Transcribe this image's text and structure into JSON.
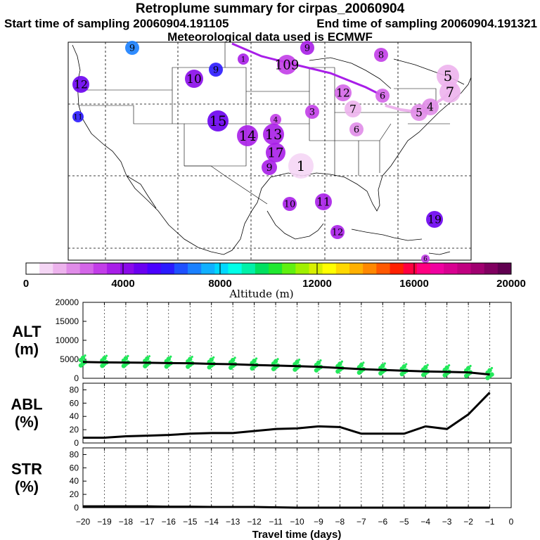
{
  "title": "Retroplume summary for cirpas_20060904",
  "start_time": "Start time of sampling 20060904.191105",
  "end_time": "End time of sampling 20060904.191321",
  "met_data": "Meteorological data used is ECMWF",
  "colorbar": {
    "label": "Altitude (m)",
    "ticks": [
      "0",
      "4000",
      "8000",
      "12000",
      "16000",
      "20000"
    ],
    "colors": [
      "#ffffff",
      "#f5d6f5",
      "#edb3ed",
      "#e08ce8",
      "#d466e8",
      "#c23de8",
      "#a81ee8",
      "#8a0aea",
      "#6a00f0",
      "#4a00ff",
      "#2a1aff",
      "#1e50ff",
      "#1a80ff",
      "#10b0ff",
      "#00d8ff",
      "#00ffe8",
      "#00f0a8",
      "#00e060",
      "#20e830",
      "#60f010",
      "#a0f000",
      "#d8f000",
      "#ffff00",
      "#ffd800",
      "#ffb000",
      "#ff8800",
      "#ff5800",
      "#ff2000",
      "#ff0040",
      "#ff0080",
      "#f000a0",
      "#d80090",
      "#c00080",
      "#a00070",
      "#800060",
      "#600050"
    ]
  },
  "map": {
    "plume_labels": [
      {
        "t": "9",
        "c": "#1a80ff"
      },
      {
        "t": "9",
        "c": "#a81ee8"
      },
      {
        "t": "8",
        "c": "#c23de8"
      },
      {
        "t": "1",
        "c": "#a81ee8"
      },
      {
        "t": "10",
        "c": "#8a0aea"
      },
      {
        "t": "9",
        "c": "#2a1aff"
      },
      {
        "t": "12",
        "c": "#6a00f0"
      },
      {
        "t": "11",
        "c": "#2a1aff"
      },
      {
        "t": "15",
        "c": "#6a00f0"
      },
      {
        "t": "4",
        "c": "#c23de8"
      },
      {
        "t": "14",
        "c": "#a81ee8"
      },
      {
        "t": "13",
        "c": "#a81ee8"
      },
      {
        "t": "17",
        "c": "#a81ee8"
      },
      {
        "t": "9",
        "c": "#a81ee8"
      },
      {
        "t": "1",
        "c": "#f5d6f5"
      },
      {
        "t": "3",
        "c": "#c23de8"
      },
      {
        "t": "12",
        "c": "#d466e8"
      },
      {
        "t": "6",
        "c": "#d466e8"
      },
      {
        "t": "7",
        "c": "#edb3ed"
      },
      {
        "t": "5",
        "c": "#e08ce8"
      },
      {
        "t": "6",
        "c": "#e08ce8"
      },
      {
        "t": "4",
        "c": "#e08ce8"
      },
      {
        "t": "5",
        "c": "#edb3ed"
      },
      {
        "t": "7",
        "c": "#edb3ed"
      },
      {
        "t": "10",
        "c": "#a81ee8"
      },
      {
        "t": "11",
        "c": "#a81ee8"
      },
      {
        "t": "12",
        "c": "#a81ee8"
      },
      {
        "t": "19",
        "c": "#6a00f0"
      },
      {
        "t": "6",
        "c": "#c23de8"
      },
      {
        "t": "109",
        "c": "#c23de8"
      }
    ]
  },
  "chart_data": [
    {
      "type": "line",
      "panel": "ALT",
      "ylabel_top": "ALT",
      "ylabel_bottom": "(m)",
      "ylim": [
        0,
        20000
      ],
      "yticks": [
        "20000",
        "15000",
        "10000",
        "5000",
        "0"
      ],
      "x": [
        -20,
        -19,
        -18,
        -17,
        -16,
        -15,
        -14,
        -13,
        -12,
        -11,
        -10,
        -9,
        -8,
        -7,
        -6,
        -5,
        -4,
        -3,
        -2,
        -1
      ],
      "values": [
        4300,
        4200,
        4150,
        4100,
        4000,
        3950,
        3800,
        3700,
        3500,
        3350,
        3200,
        3000,
        2700,
        2400,
        2200,
        2000,
        1800,
        1700,
        1550,
        1000
      ],
      "scatter_color": "#22e85a"
    },
    {
      "type": "line",
      "panel": "ABL",
      "ylabel_top": "ABL",
      "ylabel_bottom": "(%)",
      "ylim": [
        0,
        90
      ],
      "yticks": [
        "80",
        "60",
        "40",
        "20",
        "0"
      ],
      "x": [
        -20,
        -19,
        -18,
        -17,
        -16,
        -15,
        -14,
        -13,
        -12,
        -11,
        -10,
        -9,
        -8,
        -7,
        -6,
        -5,
        -4,
        -3,
        -2,
        -1
      ],
      "values": [
        8,
        8,
        10,
        11,
        12,
        14,
        15,
        15,
        18,
        21,
        22,
        25,
        24,
        14,
        14,
        14,
        25,
        21,
        43,
        76
      ]
    },
    {
      "type": "line",
      "panel": "STR",
      "ylabel_top": "STR",
      "ylabel_bottom": "(%)",
      "ylim": [
        0,
        90
      ],
      "yticks": [
        "80",
        "60",
        "40",
        "20",
        "0"
      ],
      "x": [
        -20,
        -19,
        -18,
        -17,
        -16,
        -15,
        -14,
        -13,
        -12,
        -11,
        -10,
        -9,
        -8,
        -7,
        -6,
        -5,
        -4,
        -3,
        -2,
        -1
      ],
      "values": [
        2,
        2,
        2,
        2,
        1.5,
        1.5,
        1,
        1,
        1,
        0.5,
        0,
        0,
        0,
        0,
        0,
        0,
        0,
        0,
        0,
        0
      ]
    }
  ],
  "xaxis": {
    "label": "Travel time (days)",
    "ticks": [
      "−20",
      "−19",
      "−18",
      "−17",
      "−16",
      "−15",
      "−14",
      "−13",
      "−12",
      "−11",
      "−10",
      "−9",
      "−8",
      "−7",
      "−6",
      "−5",
      "−4",
      "−3",
      "−2",
      "−1",
      "0"
    ]
  }
}
